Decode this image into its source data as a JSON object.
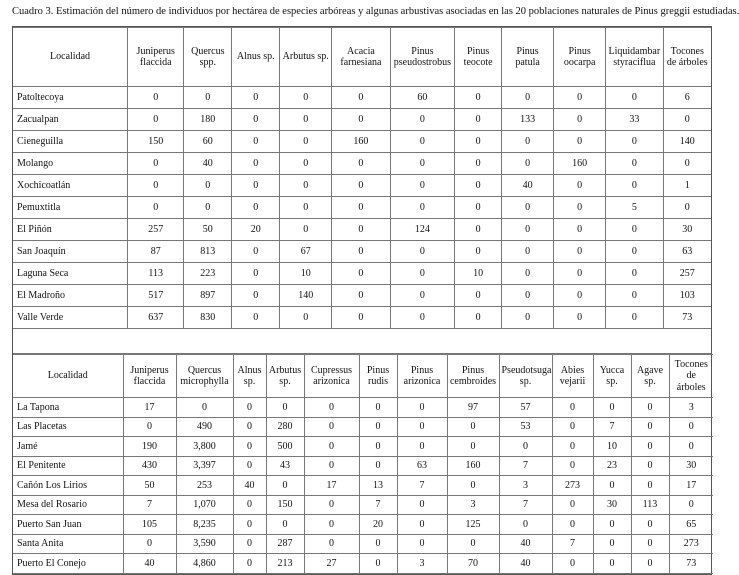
{
  "caption": "Cuadro 3. Estimación del número de individuos por hectárea de especies arbóreas y algunas arbustivas asociadas en las 20 poblaciones naturales de Pinus greggii estudiadas.",
  "table1": {
    "headers": [
      "Localidad",
      "Juniperus flaccida",
      "Quercus spp.",
      "Alnus sp.",
      "Arbutus sp.",
      "Acacia farnesiana",
      "Pinus pseudostrobus",
      "Pinus teocote",
      "Pinus patula",
      "Pinus oocarpa",
      "Liquidambar styraciflua",
      "Tocones de árboles"
    ],
    "rows": [
      [
        "Patoltecoya",
        "0",
        "0",
        "0",
        "0",
        "0",
        "60",
        "0",
        "0",
        "0",
        "0",
        "6"
      ],
      [
        "Zacualpan",
        "0",
        "180",
        "0",
        "0",
        "0",
        "0",
        "0",
        "133",
        "0",
        "33",
        "0"
      ],
      [
        "Cieneguilla",
        "150",
        "60",
        "0",
        "0",
        "160",
        "0",
        "0",
        "0",
        "0",
        "0",
        "140"
      ],
      [
        "Molango",
        "0",
        "40",
        "0",
        "0",
        "0",
        "0",
        "0",
        "0",
        "160",
        "0",
        "0"
      ],
      [
        "Xochicoatlán",
        "0",
        "0",
        "0",
        "0",
        "0",
        "0",
        "0",
        "40",
        "0",
        "0",
        "1"
      ],
      [
        "Pemuxtitla",
        "0",
        "0",
        "0",
        "0",
        "0",
        "0",
        "0",
        "0",
        "0",
        "5",
        "0"
      ],
      [
        "El Piñón",
        "257",
        "50",
        "20",
        "0",
        "0",
        "124",
        "0",
        "0",
        "0",
        "0",
        "30"
      ],
      [
        "San Joaquín",
        "87",
        "813",
        "0",
        "67",
        "0",
        "0",
        "0",
        "0",
        "0",
        "0",
        "63"
      ],
      [
        "Laguna Seca",
        "113",
        "223",
        "0",
        "10",
        "0",
        "0",
        "10",
        "0",
        "0",
        "0",
        "257"
      ],
      [
        "El Madroño",
        "517",
        "897",
        "0",
        "140",
        "0",
        "0",
        "0",
        "0",
        "0",
        "0",
        "103"
      ],
      [
        "Valle Verde",
        "637",
        "830",
        "0",
        "0",
        "0",
        "0",
        "0",
        "0",
        "0",
        "0",
        "73"
      ]
    ]
  },
  "table2": {
    "headers": [
      "Localidad",
      "Juniperus flaccida",
      "Quercus microphylla",
      "Alnus sp.",
      "Arbutus sp.",
      "Cupressus arizonica",
      "Pinus rudis",
      "Pinus arizonica",
      "Pinus cembroides",
      "Pseudotsuga sp.",
      "Abies vejarii",
      "Yucca sp.",
      "Agave sp.",
      "Tocones de árboles"
    ],
    "rows": [
      [
        "La Tapona",
        "17",
        "0",
        "0",
        "0",
        "0",
        "0",
        "0",
        "97",
        "57",
        "0",
        "0",
        "0",
        "3"
      ],
      [
        "Las Placetas",
        "0",
        "490",
        "0",
        "280",
        "0",
        "0",
        "0",
        "0",
        "53",
        "0",
        "7",
        "0",
        "0"
      ],
      [
        "Jamé",
        "190",
        "3,800",
        "0",
        "500",
        "0",
        "0",
        "0",
        "0",
        "0",
        "0",
        "10",
        "0",
        "0"
      ],
      [
        "El Penitente",
        "430",
        "3,397",
        "0",
        "43",
        "0",
        "0",
        "63",
        "160",
        "7",
        "0",
        "23",
        "0",
        "30"
      ],
      [
        "Cañón Los Lirios",
        "50",
        "253",
        "40",
        "0",
        "17",
        "13",
        "7",
        "0",
        "3",
        "273",
        "0",
        "0",
        "17"
      ],
      [
        "Mesa del Rosario",
        "7",
        "1,070",
        "0",
        "150",
        "0",
        "7",
        "0",
        "3",
        "7",
        "0",
        "30",
        "113",
        "0"
      ],
      [
        "Puerto San Juan",
        "105",
        "8,235",
        "0",
        "0",
        "0",
        "20",
        "0",
        "125",
        "0",
        "0",
        "0",
        "0",
        "65"
      ],
      [
        "Santa Anita",
        "0",
        "3,590",
        "0",
        "287",
        "0",
        "0",
        "0",
        "0",
        "40",
        "7",
        "0",
        "0",
        "273"
      ],
      [
        "Puerto El Conejo",
        "40",
        "4,860",
        "0",
        "213",
        "27",
        "0",
        "3",
        "70",
        "40",
        "0",
        "0",
        "0",
        "73"
      ]
    ]
  }
}
